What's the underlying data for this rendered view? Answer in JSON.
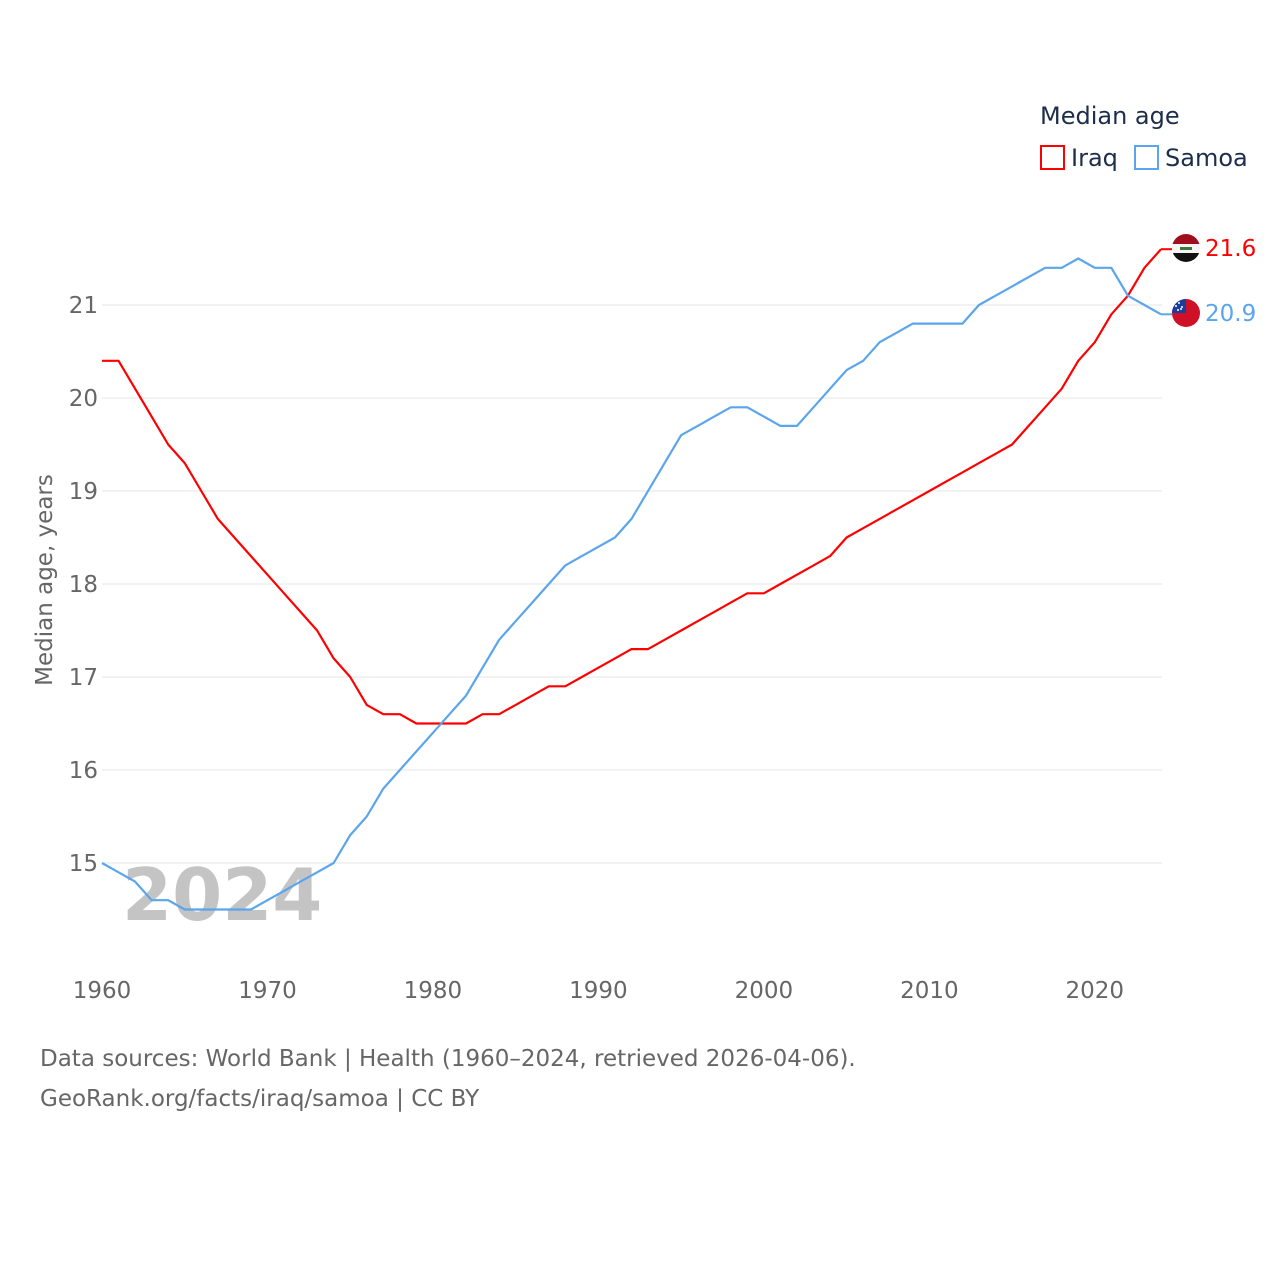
{
  "chart_data": {
    "type": "line",
    "title": "Median age",
    "xlabel": "",
    "ylabel": "Median age, years",
    "xlim": [
      1960,
      2024
    ],
    "ylim": [
      14.1,
      21.8
    ],
    "xticks": [
      1960,
      1970,
      1980,
      1990,
      2000,
      2010,
      2020
    ],
    "yticks": [
      15,
      16,
      17,
      18,
      19,
      20,
      21
    ],
    "grid": true,
    "legend": "top-right",
    "year_label": "2024",
    "x": [
      1960,
      1961,
      1962,
      1963,
      1964,
      1965,
      1966,
      1967,
      1968,
      1969,
      1970,
      1971,
      1972,
      1973,
      1974,
      1975,
      1976,
      1977,
      1978,
      1979,
      1980,
      1981,
      1982,
      1983,
      1984,
      1985,
      1986,
      1987,
      1988,
      1989,
      1990,
      1991,
      1992,
      1993,
      1994,
      1995,
      1996,
      1997,
      1998,
      1999,
      2000,
      2001,
      2002,
      2003,
      2004,
      2005,
      2006,
      2007,
      2008,
      2009,
      2010,
      2011,
      2012,
      2013,
      2014,
      2015,
      2016,
      2017,
      2018,
      2019,
      2020,
      2021,
      2022,
      2023,
      2024
    ],
    "series": [
      {
        "name": "Iraq",
        "color": "#ff0000",
        "end_label": "21.6",
        "values": [
          20.4,
          20.4,
          20.1,
          19.8,
          19.5,
          19.3,
          19.0,
          18.7,
          18.5,
          18.3,
          18.1,
          17.9,
          17.7,
          17.5,
          17.2,
          17.0,
          16.7,
          16.6,
          16.6,
          16.5,
          16.5,
          16.5,
          16.5,
          16.6,
          16.6,
          16.7,
          16.8,
          16.9,
          16.9,
          17.0,
          17.1,
          17.2,
          17.3,
          17.3,
          17.4,
          17.5,
          17.6,
          17.7,
          17.8,
          17.9,
          17.9,
          18.0,
          18.1,
          18.2,
          18.3,
          18.5,
          18.6,
          18.7,
          18.8,
          18.9,
          19.0,
          19.1,
          19.2,
          19.3,
          19.4,
          19.5,
          19.7,
          19.9,
          20.1,
          20.4,
          20.6,
          20.9,
          21.1,
          21.4,
          21.6
        ]
      },
      {
        "name": "Samoa",
        "color": "#5aa5ec",
        "end_label": "20.9",
        "values": [
          15.0,
          14.9,
          14.8,
          14.6,
          14.6,
          14.5,
          14.5,
          14.5,
          14.5,
          14.5,
          14.6,
          14.7,
          14.8,
          14.9,
          15.0,
          15.3,
          15.5,
          15.8,
          16.0,
          16.2,
          16.4,
          16.6,
          16.8,
          17.1,
          17.4,
          17.6,
          17.8,
          18.0,
          18.2,
          18.3,
          18.4,
          18.5,
          18.7,
          19.0,
          19.3,
          19.6,
          19.7,
          19.8,
          19.9,
          19.9,
          19.8,
          19.7,
          19.7,
          19.9,
          20.1,
          20.3,
          20.4,
          20.6,
          20.7,
          20.8,
          20.8,
          20.8,
          20.8,
          21.0,
          21.1,
          21.2,
          21.3,
          21.4,
          21.4,
          21.5,
          21.4,
          21.4,
          21.1,
          21.0,
          20.9
        ]
      }
    ]
  },
  "sources": {
    "line1": "Data sources: World Bank | Health (1960–2024, retrieved 2026-04-06).",
    "line2": "GeoRank.org/facts/iraq/samoa | CC BY"
  }
}
